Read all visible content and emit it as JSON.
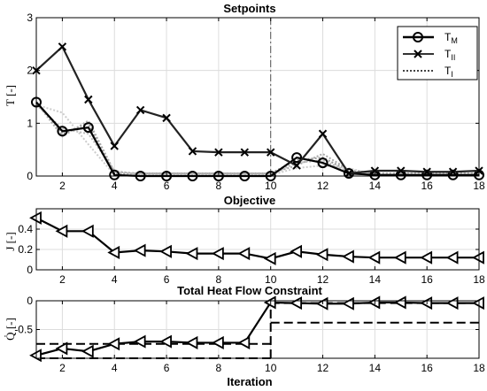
{
  "chart_data": [
    {
      "type": "line",
      "title": "Setpoints",
      "ylabel": "T [-]",
      "xlabel": "",
      "xlim": [
        1,
        18
      ],
      "ylim": [
        0,
        3
      ],
      "xticks": [
        2,
        4,
        6,
        8,
        10,
        12,
        14,
        16,
        18
      ],
      "yticks": [
        0,
        1,
        2,
        3
      ],
      "grid": true,
      "vline_x": 10,
      "legend": {
        "placement": "top-right",
        "entries": [
          {
            "base": "T",
            "sub": "M"
          },
          {
            "base": "T",
            "sub": "II"
          },
          {
            "base": "T",
            "sub": "I"
          }
        ]
      },
      "x": [
        1,
        2,
        3,
        4,
        5,
        6,
        7,
        8,
        9,
        10,
        11,
        12,
        13,
        14,
        15,
        16,
        17,
        18
      ],
      "series": [
        {
          "name": "T_M",
          "marker": "circle",
          "values": [
            1.4,
            0.85,
            0.92,
            0.02,
            0.0,
            0.0,
            0.0,
            0.0,
            0.0,
            0.0,
            0.35,
            0.25,
            0.05,
            0.02,
            0.02,
            0.02,
            0.02,
            0.02
          ]
        },
        {
          "name": "T_II",
          "marker": "x",
          "values": [
            2.0,
            2.45,
            1.45,
            0.57,
            1.25,
            1.1,
            0.47,
            0.45,
            0.45,
            0.45,
            0.2,
            0.8,
            0.05,
            0.1,
            0.1,
            0.08,
            0.08,
            0.1
          ]
        }
      ],
      "t_i_lines": [
        [
          1.4,
          0.8,
          1.0,
          0.05,
          0.05,
          0.05,
          0.05,
          0.05,
          0.05,
          0.05,
          0.3,
          0.35,
          0.1,
          0.05,
          0.05,
          0.05,
          0.05,
          0.05
        ],
        [
          1.4,
          0.75,
          1.05,
          0.08,
          0.05,
          0.05,
          0.05,
          0.05,
          0.05,
          0.05,
          0.2,
          0.42,
          0.12,
          0.05,
          0.05,
          0.05,
          0.05,
          0.05
        ],
        [
          1.35,
          0.9,
          0.8,
          0.1,
          0.03,
          0.03,
          0.03,
          0.03,
          0.03,
          0.03,
          0.25,
          0.3,
          0.08,
          0.03,
          0.03,
          0.03,
          0.03,
          0.03
        ],
        [
          1.35,
          1.2,
          0.6,
          0.02,
          0.02,
          0.02,
          0.02,
          0.02,
          0.02,
          0.02,
          0.15,
          0.2,
          0.15,
          0.02,
          0.02,
          0.02,
          0.02,
          0.02
        ]
      ]
    },
    {
      "type": "line",
      "title": "Objective",
      "ylabel": "J [-]",
      "xlim": [
        1,
        18
      ],
      "ylim": [
        0,
        0.6
      ],
      "xticks": [
        2,
        4,
        6,
        8,
        10,
        12,
        14,
        16,
        18
      ],
      "yticks": [
        0,
        0.2,
        0.4
      ],
      "grid": true,
      "x": [
        1,
        2,
        3,
        4,
        5,
        6,
        7,
        8,
        9,
        10,
        11,
        12,
        13,
        14,
        15,
        16,
        17,
        18
      ],
      "series": [
        {
          "name": "J",
          "marker": "triangle-left",
          "values": [
            0.51,
            0.38,
            0.38,
            0.17,
            0.19,
            0.18,
            0.16,
            0.16,
            0.16,
            0.11,
            0.18,
            0.15,
            0.13,
            0.12,
            0.12,
            0.12,
            0.12,
            0.12
          ]
        }
      ]
    },
    {
      "type": "line",
      "title": "Total Heat Flow Constraint",
      "ylabel": "Q̇ [-]",
      "xlabel": "Iteration",
      "xlim": [
        1,
        18
      ],
      "ylim": [
        -1,
        0
      ],
      "xticks": [
        2,
        4,
        6,
        8,
        10,
        12,
        14,
        16,
        18
      ],
      "yticks": [
        -1,
        -0.5,
        0
      ],
      "ytick_labels": [
        "",
        "-0.5",
        "0"
      ],
      "grid": true,
      "x": [
        1,
        2,
        3,
        4,
        5,
        6,
        7,
        8,
        9,
        10,
        11,
        12,
        13,
        14,
        15,
        16,
        17,
        18
      ],
      "series": [
        {
          "name": "Q",
          "marker": "triangle-left",
          "values": [
            -0.95,
            -0.83,
            -0.88,
            -0.75,
            -0.71,
            -0.71,
            -0.73,
            -0.73,
            -0.73,
            -0.03,
            -0.04,
            -0.05,
            -0.05,
            -0.03,
            -0.03,
            -0.04,
            -0.04,
            -0.04
          ]
        }
      ],
      "bounds": [
        {
          "x": [
            1,
            10
          ],
          "y": -0.75
        },
        {
          "x": [
            1,
            10
          ],
          "y": -1
        },
        {
          "x": [
            10,
            18
          ],
          "y": -0.38
        },
        {
          "x": [
            10,
            18
          ],
          "y": -0.04
        }
      ],
      "bound_vertical_x": 10
    }
  ]
}
